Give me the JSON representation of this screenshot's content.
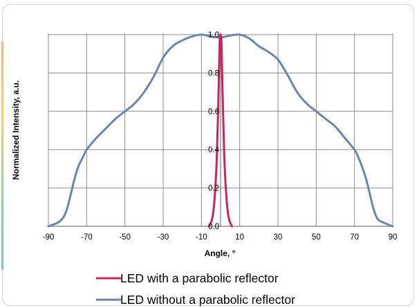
{
  "chart_data": {
    "type": "line",
    "title": "",
    "xlabel": "Angle, °",
    "ylabel": "Normalized Intensity, a.u.",
    "xlim": [
      -90,
      90
    ],
    "ylim": [
      0,
      1.0
    ],
    "x_ticks": [
      "-90",
      "-70",
      "-50",
      "-30",
      "-10",
      "10",
      "30",
      "50",
      "70",
      "90"
    ],
    "y_ticks": [
      "0.0",
      "0.2",
      "0.4",
      "0.6",
      "0.8",
      "1.0"
    ],
    "grid": true,
    "legend_position": "bottom",
    "series": [
      {
        "name": "LED with a parabolic reflector",
        "color": "#c8245f",
        "x": [
          -6,
          -5,
          -4,
          -3,
          -2,
          -1,
          -0.5,
          0,
          0.5,
          1,
          2,
          3,
          4,
          5,
          6
        ],
        "y": [
          0.0,
          0.02,
          0.06,
          0.16,
          0.35,
          0.72,
          0.95,
          1.0,
          0.95,
          0.72,
          0.35,
          0.16,
          0.06,
          0.02,
          0.0
        ]
      },
      {
        "name": "LED without a parabolic reflector",
        "color": "#6b86ad",
        "x": [
          -90,
          -85,
          -82,
          -80,
          -78,
          -76,
          -74,
          -72,
          -70,
          -65,
          -60,
          -55,
          -50,
          -45,
          -40,
          -35,
          -30,
          -25,
          -20,
          -15,
          -10,
          -5,
          0,
          5,
          10,
          15,
          20,
          25,
          30,
          35,
          40,
          45,
          50,
          55,
          60,
          65,
          70,
          72,
          74,
          76,
          78,
          80,
          82,
          85,
          90
        ],
        "y": [
          0.0,
          0.02,
          0.05,
          0.1,
          0.18,
          0.26,
          0.32,
          0.36,
          0.4,
          0.46,
          0.51,
          0.56,
          0.6,
          0.64,
          0.7,
          0.78,
          0.88,
          0.94,
          0.97,
          0.99,
          1.0,
          0.99,
          0.985,
          0.995,
          1.0,
          0.98,
          0.94,
          0.91,
          0.87,
          0.79,
          0.7,
          0.64,
          0.6,
          0.56,
          0.52,
          0.46,
          0.4,
          0.36,
          0.31,
          0.25,
          0.17,
          0.09,
          0.04,
          0.02,
          0.0
        ]
      }
    ]
  }
}
